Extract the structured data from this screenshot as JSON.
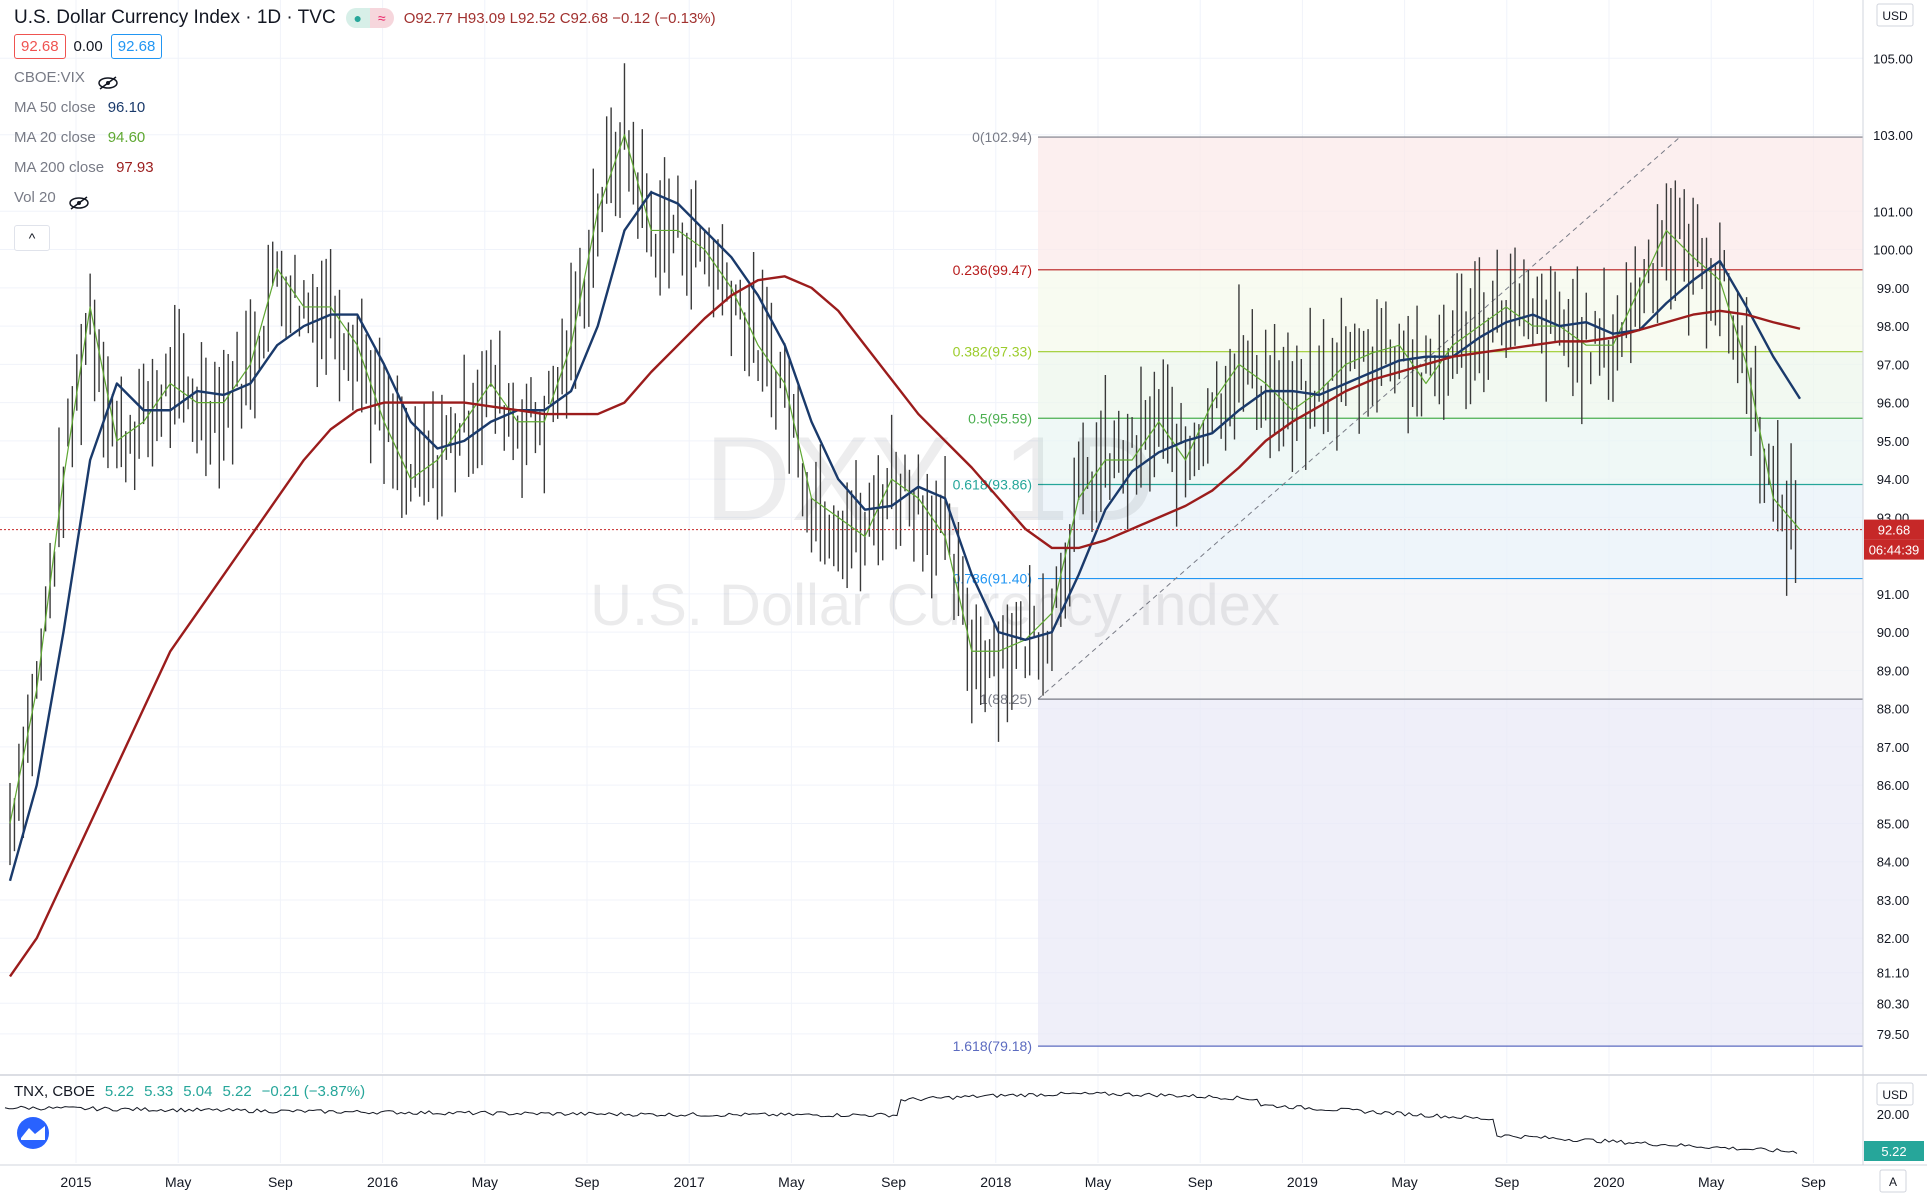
{
  "header": {
    "title": "U.S. Dollar Currency Index · 1D · TVC",
    "ohlc": {
      "open": "O92.77",
      "high": "H93.09",
      "low": "L92.52",
      "close": "C92.68",
      "change": "−0.12 (−0.13%)"
    },
    "sell_price": "92.68",
    "spread": "0.00",
    "buy_price": "92.68"
  },
  "indicators": [
    {
      "name": "CBOE:VIX",
      "value": "",
      "color": "#787b86",
      "hidden": true
    },
    {
      "name": "MA 50 close",
      "value": "96.10",
      "color": "#1a3a6b"
    },
    {
      "name": "MA 20 close",
      "value": "94.60",
      "color": "#5fa832"
    },
    {
      "name": "MA 200 close",
      "value": "97.93",
      "color": "#9b1c1c"
    },
    {
      "name": "Vol 20",
      "value": "",
      "color": "#787b86",
      "hidden": true
    }
  ],
  "collapse_label": "^",
  "watermark": {
    "symbol": "DXY, 1D",
    "name": "U.S. Dollar Currency Index"
  },
  "price_axis": {
    "currency": "USD",
    "labels": [
      "105.00",
      "103.00",
      "101.00",
      "100.00",
      "99.00",
      "98.00",
      "97.00",
      "96.00",
      "95.00",
      "94.00",
      "93.00",
      "91.00",
      "90.00",
      "89.00",
      "88.00",
      "87.00",
      "86.00",
      "85.00",
      "84.00",
      "83.00",
      "82.00",
      "81.10",
      "80.30",
      "79.50"
    ],
    "last_price_label": "92.68",
    "countdown_label": "06:44:39"
  },
  "time_axis": {
    "labels": [
      "2015",
      "May",
      "Sep",
      "2016",
      "May",
      "Sep",
      "2017",
      "May",
      "Sep",
      "2018",
      "May",
      "Sep",
      "2019",
      "May",
      "Sep",
      "2020",
      "May",
      "Sep"
    ]
  },
  "fibonacci": [
    {
      "label": "0(102.94)",
      "value": 102.94,
      "color": "#787b86"
    },
    {
      "label": "0.236(99.47)",
      "value": 99.47,
      "color": "#b71c1c"
    },
    {
      "label": "0.382(97.33)",
      "value": 97.33,
      "color": "#9ccc2c"
    },
    {
      "label": "0.5(95.59)",
      "value": 95.59,
      "color": "#4caf50"
    },
    {
      "label": "0.618(93.86)",
      "value": 93.86,
      "color": "#26a69a"
    },
    {
      "label": "0.786(91.40)",
      "value": 91.4,
      "color": "#2196f3"
    },
    {
      "label": "1(88.25)",
      "value": 88.25,
      "color": "#787b86"
    },
    {
      "label": "1.618(79.18)",
      "value": 79.18,
      "color": "#5c6bc0"
    }
  ],
  "sub_pane": {
    "title": "TNX, CBOE",
    "values": [
      "5.22",
      "5.33",
      "5.04",
      "5.22",
      "−0.21 (−3.87%)"
    ],
    "axis_labels": [
      "20.00"
    ],
    "axis_currency": "USD",
    "last_label": "5.22"
  },
  "chart_data": {
    "type": "line",
    "title": "U.S. Dollar Currency Index · 1D · TVC",
    "x": [
      "2015-01",
      "2015-02",
      "2015-03",
      "2015-04",
      "2015-05",
      "2015-06",
      "2015-07",
      "2015-08",
      "2015-09",
      "2015-10",
      "2015-11",
      "2015-12",
      "2016-01",
      "2016-02",
      "2016-03",
      "2016-04",
      "2016-05",
      "2016-06",
      "2016-07",
      "2016-08",
      "2016-09",
      "2016-10",
      "2016-11",
      "2016-12",
      "2017-01",
      "2017-02",
      "2017-03",
      "2017-04",
      "2017-05",
      "2017-06",
      "2017-07",
      "2017-08",
      "2017-09",
      "2017-10",
      "2017-11",
      "2017-12",
      "2018-01",
      "2018-02",
      "2018-03",
      "2018-04",
      "2018-05",
      "2018-06",
      "2018-07",
      "2018-08",
      "2018-09",
      "2018-10",
      "2018-11",
      "2018-12",
      "2019-01",
      "2019-02",
      "2019-03",
      "2019-04",
      "2019-05",
      "2019-06",
      "2019-07",
      "2019-08",
      "2019-09",
      "2019-10",
      "2019-11",
      "2019-12",
      "2020-01",
      "2020-02",
      "2020-03",
      "2020-04",
      "2020-05",
      "2020-06",
      "2020-07",
      "2020-08"
    ],
    "ylim": [
      79.0,
      106.0
    ],
    "series": [
      {
        "name": "DXY",
        "values": [
          85.0,
          88.5,
          94.0,
          98.5,
          95.0,
          95.5,
          96.5,
          96.0,
          96.0,
          97.0,
          99.5,
          98.5,
          98.5,
          97.5,
          95.5,
          94.0,
          94.5,
          95.5,
          96.5,
          95.5,
          95.5,
          97.5,
          101.0,
          103.0,
          100.5,
          100.5,
          100.0,
          99.0,
          97.5,
          96.5,
          93.5,
          93.0,
          92.5,
          94.0,
          93.5,
          92.5,
          89.5,
          89.5,
          89.8,
          90.5,
          93.5,
          94.5,
          94.5,
          95.5,
          94.5,
          96.0,
          97.0,
          96.5,
          95.8,
          96.3,
          97.0,
          97.3,
          97.5,
          96.5,
          97.5,
          98.0,
          98.5,
          98.0,
          98.0,
          97.5,
          97.5,
          99.0,
          100.5,
          99.8,
          99.2,
          97.0,
          93.5,
          92.68
        ]
      },
      {
        "name": "MA 50 close",
        "values": [
          83.5,
          86.0,
          90.0,
          94.5,
          96.5,
          95.8,
          95.8,
          96.3,
          96.2,
          96.5,
          97.5,
          98.0,
          98.3,
          98.3,
          97.0,
          95.5,
          94.8,
          95.0,
          95.5,
          95.8,
          95.8,
          96.3,
          98.0,
          100.5,
          101.5,
          101.2,
          100.5,
          99.8,
          98.8,
          97.5,
          95.5,
          94.0,
          93.2,
          93.3,
          93.8,
          93.5,
          91.5,
          90.0,
          89.8,
          90.0,
          91.5,
          93.2,
          94.2,
          94.7,
          95.0,
          95.2,
          95.8,
          96.3,
          96.3,
          96.2,
          96.5,
          96.8,
          97.1,
          97.2,
          97.2,
          97.7,
          98.1,
          98.3,
          98.0,
          98.1,
          97.8,
          97.9,
          98.6,
          99.2,
          99.7,
          98.5,
          97.2,
          96.1
        ]
      },
      {
        "name": "MA 200 close",
        "values": [
          81.0,
          82.0,
          83.5,
          85.0,
          86.5,
          88.0,
          89.5,
          90.5,
          91.5,
          92.5,
          93.5,
          94.5,
          95.3,
          95.8,
          96.0,
          96.0,
          96.0,
          96.0,
          95.9,
          95.8,
          95.7,
          95.7,
          95.7,
          96.0,
          96.8,
          97.5,
          98.2,
          98.8,
          99.2,
          99.3,
          99.0,
          98.4,
          97.5,
          96.6,
          95.7,
          95.0,
          94.3,
          93.5,
          92.7,
          92.2,
          92.2,
          92.4,
          92.7,
          93.0,
          93.3,
          93.7,
          94.3,
          95.0,
          95.5,
          95.9,
          96.3,
          96.6,
          96.8,
          97.0,
          97.2,
          97.3,
          97.4,
          97.5,
          97.6,
          97.6,
          97.7,
          97.9,
          98.1,
          98.3,
          98.4,
          98.3,
          98.1,
          97.93
        ]
      }
    ],
    "legend_position": "top-left",
    "grid": true
  }
}
